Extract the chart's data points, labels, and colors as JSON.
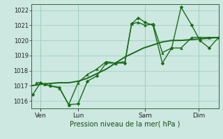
{
  "xlabel": "Pression niveau de la mer( hPa )",
  "bg_color": "#cce8e0",
  "line_color": "#1a6b1a",
  "grid_color": "#99ccbb",
  "ylim": [
    1015.5,
    1022.4
  ],
  "ytick_values": [
    1016,
    1017,
    1018,
    1019,
    1020,
    1021,
    1022
  ],
  "xlim": [
    0,
    14
  ],
  "xtick_positions": [
    0.7,
    3.5,
    8.5,
    12.5
  ],
  "xtick_labels": [
    "Ven",
    "Lun",
    "Sam",
    "Dim"
  ],
  "smooth_x": [
    0.0,
    0.7,
    1.4,
    2.1,
    2.8,
    3.5,
    4.2,
    4.9,
    5.6,
    6.3,
    7.0,
    7.7,
    8.4,
    9.1,
    9.8,
    10.5,
    11.2,
    11.9,
    12.6,
    13.3,
    14.0
  ],
  "smooth_y": [
    1017.0,
    1017.1,
    1017.15,
    1017.2,
    1017.2,
    1017.3,
    1017.5,
    1017.8,
    1018.1,
    1018.5,
    1018.9,
    1019.2,
    1019.5,
    1019.7,
    1019.9,
    1020.0,
    1020.0,
    1020.05,
    1020.1,
    1020.15,
    1020.2
  ],
  "line1_x": [
    0.1,
    0.7,
    1.0,
    1.4,
    2.1,
    2.8,
    3.5,
    4.2,
    4.9,
    5.6,
    6.3,
    7.0,
    7.5,
    8.0,
    8.5,
    9.1,
    9.8,
    10.5,
    11.2,
    12.0,
    12.6,
    13.3,
    14.0
  ],
  "line1_y": [
    1016.4,
    1017.2,
    1017.1,
    1017.0,
    1016.9,
    1015.75,
    1015.8,
    1017.3,
    1017.65,
    1018.5,
    1018.5,
    1018.5,
    1021.1,
    1021.5,
    1021.2,
    1021.0,
    1018.5,
    1019.5,
    1022.2,
    1021.0,
    1020.0,
    1019.5,
    1020.2
  ],
  "line2_x": [
    0.4,
    0.7,
    1.0,
    1.4,
    2.1,
    2.8,
    3.5,
    4.2,
    4.9,
    5.6,
    6.3,
    7.0,
    7.5,
    8.0,
    8.5,
    9.1,
    9.8,
    10.5,
    11.2,
    12.0,
    12.6,
    13.3,
    14.0
  ],
  "line2_y": [
    1017.2,
    1017.2,
    1017.1,
    1017.0,
    1016.85,
    1015.75,
    1017.2,
    1017.75,
    1018.1,
    1018.6,
    1018.5,
    1018.6,
    1021.1,
    1021.2,
    1021.0,
    1021.1,
    1019.2,
    1019.5,
    1019.5,
    1020.2,
    1020.2,
    1020.2,
    1020.2
  ],
  "vline_positions": [
    0.7,
    3.5,
    8.5,
    12.5
  ]
}
